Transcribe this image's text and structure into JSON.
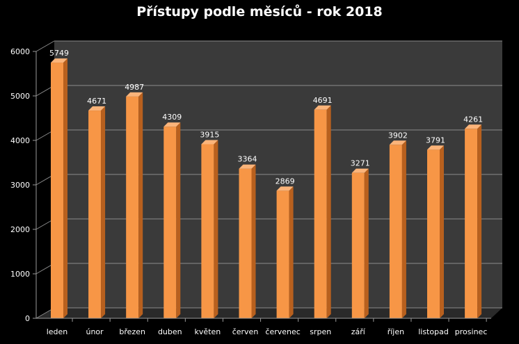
{
  "chart_data": {
    "type": "bar",
    "title": "Přístupy podle měsíců - rok 2018",
    "categories": [
      "leden",
      "únor",
      "březen",
      "duben",
      "květen",
      "červen",
      "červenec",
      "srpen",
      "září",
      "říjen",
      "listopad",
      "prosinec"
    ],
    "values": [
      5749,
      4671,
      4987,
      4309,
      3915,
      3364,
      2869,
      4691,
      3271,
      3902,
      3791,
      4261
    ],
    "ylim": [
      0,
      6000
    ],
    "yticks": [
      "0",
      "1000",
      "2000",
      "3000",
      "4000",
      "5000",
      "6000"
    ],
    "grid": true,
    "colors": {
      "bar": "#F79646",
      "bar_side": "#B8601E",
      "bar_top": "#FBB47A",
      "wall": "#3A3A3A",
      "gridline": "#8C8C8C",
      "background": "#000000"
    }
  }
}
